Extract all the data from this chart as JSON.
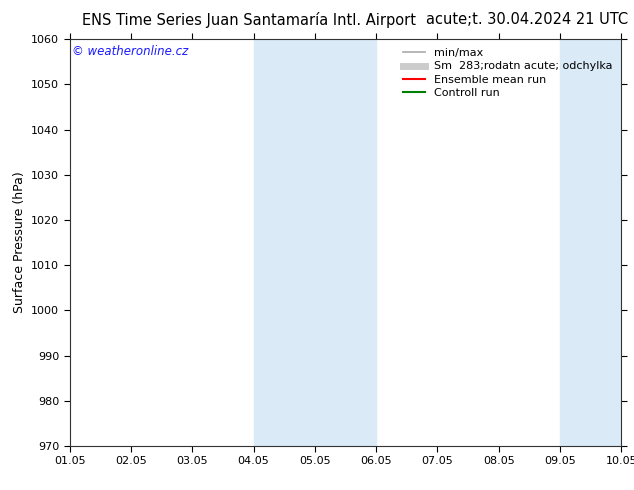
{
  "title_left": "ENS Time Series Juan Santamaría Intl. Airport",
  "title_right": "acute;t. 30.04.2024 21 UTC",
  "ylabel": "Surface Pressure (hPa)",
  "ylim": [
    970,
    1060
  ],
  "yticks": [
    970,
    980,
    990,
    1000,
    1010,
    1020,
    1030,
    1040,
    1050,
    1060
  ],
  "xlim_min": 0,
  "xlim_max": 9,
  "xtick_labels": [
    "01.05",
    "02.05",
    "03.05",
    "04.05",
    "05.05",
    "06.05",
    "07.05",
    "08.05",
    "09.05",
    "10.05"
  ],
  "xtick_positions": [
    0,
    1,
    2,
    3,
    4,
    5,
    6,
    7,
    8,
    9
  ],
  "shaded_bands": [
    {
      "xmin": 3.0,
      "xmax": 4.0,
      "color": "#daeaf7"
    },
    {
      "xmin": 4.0,
      "xmax": 5.0,
      "color": "#daeaf7"
    },
    {
      "xmin": 8.0,
      "xmax": 8.5,
      "color": "#daeaf7"
    },
    {
      "xmin": 8.5,
      "xmax": 9.5,
      "color": "#daeaf7"
    }
  ],
  "legend_entries": [
    {
      "label": "min/max",
      "color": "#aaaaaa",
      "lw": 1.2
    },
    {
      "label": "Sm  283;rodatn acute; odchylka",
      "color": "#cccccc",
      "lw": 5
    },
    {
      "label": "Ensemble mean run",
      "color": "#ff0000",
      "lw": 1.5
    },
    {
      "label": "Controll run",
      "color": "#008000",
      "lw": 1.5
    }
  ],
  "watermark": "© weatheronline.cz",
  "watermark_color": "#1a1aff",
  "bg_color": "#ffffff",
  "title_fontsize": 10.5,
  "axis_label_fontsize": 9,
  "tick_fontsize": 8,
  "legend_fontsize": 8,
  "band1_xmin": 3.0,
  "band1_xmax": 5.0,
  "band2_xmin": 8.0,
  "band2_xmax": 9.5
}
